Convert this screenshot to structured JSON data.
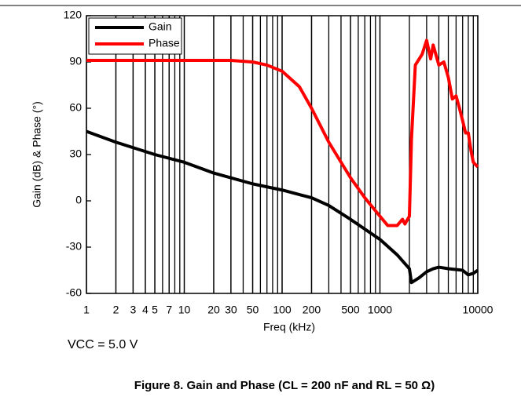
{
  "chart_data": {
    "type": "line",
    "title": "Figure 8. Gain and Phase (CL = 200 nF and RL = 50 Ω)",
    "annotation": "VCC = 5.0 V",
    "x_label": "Freq (kHz)",
    "y_label": "Gain (dB) & Phase (°)",
    "log_x": true,
    "grid": true,
    "legend": "upper left",
    "xlim": [
      1,
      10000
    ],
    "xticks": [
      1,
      2,
      3,
      4,
      5,
      7,
      10,
      20,
      30,
      50,
      100,
      200,
      500,
      1000,
      10000
    ],
    "ylim": [
      -60,
      120
    ],
    "yticks": [
      -60,
      -30,
      0,
      30,
      60,
      90,
      120
    ],
    "series": [
      {
        "name": "Gain",
        "color": "#000000",
        "x": [
          1,
          2,
          5,
          10,
          20,
          50,
          100,
          200,
          300,
          500,
          1000,
          1500,
          2000,
          2100,
          2500,
          3000,
          3500,
          4000,
          5000,
          7000,
          8000,
          9000,
          10000
        ],
        "values": [
          45,
          38,
          30,
          25,
          18,
          11,
          7,
          2,
          -3,
          -12,
          -25,
          -35,
          -44,
          -53,
          -50,
          -46,
          -44,
          -43,
          -44,
          -45,
          -48,
          -47,
          -45
        ]
      },
      {
        "name": "Phase",
        "color": "#ff0000",
        "x": [
          1,
          10,
          30,
          50,
          70,
          100,
          150,
          200,
          300,
          500,
          700,
          1000,
          1200,
          1500,
          1700,
          1800,
          2000,
          2100,
          2300,
          2700,
          3000,
          3300,
          3500,
          4000,
          4500,
          5000,
          5500,
          6000,
          6500,
          7000,
          7500,
          8000,
          8500,
          9000,
          10000
        ],
        "values": [
          91,
          91,
          91,
          90,
          88,
          84,
          74,
          60,
          38,
          15,
          2,
          -10,
          -16,
          -16,
          -12,
          -15,
          -10,
          40,
          88,
          95,
          104,
          92,
          101,
          88,
          90,
          80,
          66,
          68,
          60,
          52,
          44,
          44,
          33,
          25,
          22
        ]
      }
    ]
  }
}
